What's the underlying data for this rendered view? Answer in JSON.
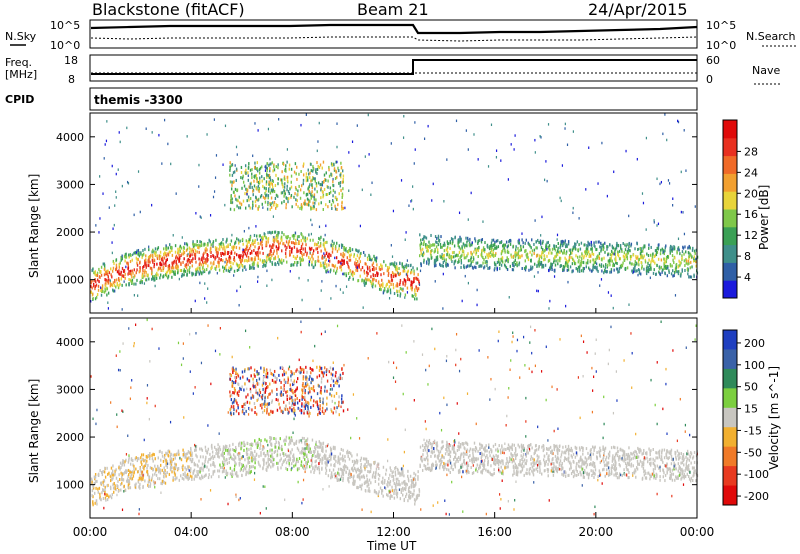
{
  "header": {
    "station": "Blackstone (fitACF)",
    "beam": "Beam 21",
    "date": "24/Apr/2015"
  },
  "top_panels": {
    "nsky_label": "N.Sky",
    "nsearch_label": "N.Search",
    "nsky_ticks": [
      "10^5",
      "10^0"
    ],
    "nsearch_ticks": [
      "10^5",
      "10^0"
    ],
    "freq_label_line1": "Freq.",
    "freq_label_line2": "[MHz]",
    "freq_ticks": [
      "18",
      "8"
    ],
    "nave_label": "Nave",
    "nave_ticks": [
      "60",
      "0"
    ],
    "cpid_label": "CPID",
    "cpid_value": "themis -3300"
  },
  "chart_data": [
    {
      "type": "heatmap",
      "panel": "power",
      "ylabel": "Slant Range [km]",
      "yticks": [
        "1000",
        "2000",
        "3000",
        "4000"
      ],
      "ylim": [
        300,
        4500
      ],
      "xlim_hours": [
        0,
        24
      ],
      "colorbar_label": "Power [dB]",
      "colorbar_ticks": [
        "4",
        "8",
        "12",
        "16",
        "20",
        "24",
        "28"
      ],
      "colorbar_colors": [
        "#1a1adc",
        "#2f5fa6",
        "#3f8f8a",
        "#3aa055",
        "#7fc84a",
        "#e8d43a",
        "#f2a030",
        "#f06a28",
        "#e83020",
        "#e00a0a"
      ],
      "echo_bands": [
        {
          "from_h": 0.0,
          "to_h": 13.0,
          "center_km": [
            900,
            1250,
            1400,
            1500,
            1550,
            1700,
            1650,
            1400,
            1100,
            950
          ],
          "main_color": "#e8442a"
        },
        {
          "from_h": 13.0,
          "to_h": 24.0,
          "center_km": [
            1650,
            1600,
            1550,
            1550,
            1500,
            1500,
            1450,
            1400
          ],
          "main_color": "#5fb84a"
        }
      ]
    },
    {
      "type": "heatmap",
      "panel": "velocity",
      "ylabel": "Slant Range [km]",
      "yticks": [
        "1000",
        "2000",
        "3000",
        "4000"
      ],
      "ylim": [
        300,
        4500
      ],
      "xlim_hours": [
        0,
        24
      ],
      "xticks": [
        "00:00",
        "04:00",
        "08:00",
        "12:00",
        "16:00",
        "20:00",
        "00:00"
      ],
      "xlabel": "Time UT",
      "colorbar_label": "Velocity [m s^-1]",
      "colorbar_ticks": [
        "200",
        "100",
        "50",
        "15",
        "-15",
        "-50",
        "-100",
        "-200"
      ],
      "colorbar_colors": [
        "#1f3fc0",
        "#3a62a8",
        "#2f8a5a",
        "#7ccf3f",
        "#c8c6c0",
        "#f2b030",
        "#f07a28",
        "#e83a20",
        "#e00a0a"
      ]
    }
  ]
}
